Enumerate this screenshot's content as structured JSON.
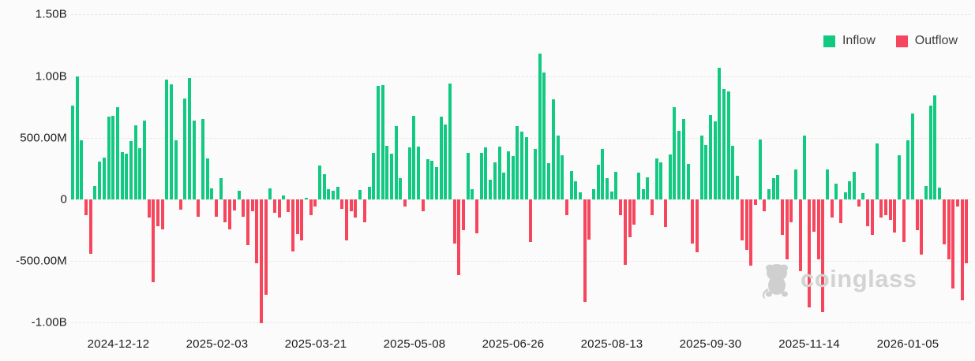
{
  "legend": {
    "inflow_label": "Inflow",
    "outflow_label": "Outflow"
  },
  "watermark": {
    "brand": "coinglass"
  },
  "colors": {
    "inflow_green": "#12C981",
    "outflow_red": "#F5465D",
    "background": "#FBFBFB",
    "gridline": "#E7E7E7",
    "axis_text": "#1C1C1C",
    "watermark_gray": "#D3D3D3"
  },
  "chart_data": {
    "type": "bar",
    "title": "",
    "xlabel": "",
    "ylabel": "",
    "unit": "USD",
    "value_unit": "millions (M); 1000 = 1.00B",
    "sign_convention": "positive = Inflow (green), negative = Outflow (red)",
    "legend_entries": [
      "Inflow",
      "Outflow"
    ],
    "legend_position": "top-right",
    "grid": "horizontal dashed",
    "ylim": [
      -1150,
      1500
    ],
    "y_ticks": [
      {
        "label": "1.50B",
        "value": 1500
      },
      {
        "label": "1.00B",
        "value": 1000
      },
      {
        "label": "500.00M",
        "value": 500
      },
      {
        "label": "0",
        "value": 0
      },
      {
        "label": "-500.00M",
        "value": -500
      },
      {
        "label": "-1.00B",
        "value": -1000
      }
    ],
    "x_ticks": [
      "2024-12-12",
      "2025-02-03",
      "2025-03-21",
      "2025-05-08",
      "2025-06-26",
      "2025-08-13",
      "2025-09-30",
      "2025-11-14",
      "2026-01-05"
    ],
    "values": [
      760,
      1000,
      480,
      -130,
      -440,
      110,
      310,
      340,
      670,
      680,
      745,
      385,
      370,
      470,
      600,
      415,
      640,
      -150,
      -670,
      -215,
      -245,
      970,
      935,
      480,
      -85,
      820,
      985,
      640,
      -140,
      650,
      335,
      90,
      -140,
      170,
      -185,
      -240,
      -90,
      70,
      -140,
      -370,
      -95,
      -520,
      -1005,
      -775,
      90,
      -110,
      -150,
      30,
      -100,
      -420,
      -280,
      -330,
      15,
      -125,
      -60,
      275,
      205,
      85,
      70,
      105,
      -75,
      -330,
      -95,
      -150,
      75,
      -185,
      105,
      375,
      920,
      930,
      435,
      370,
      595,
      170,
      -55,
      420,
      680,
      430,
      -95,
      325,
      315,
      260,
      670,
      610,
      940,
      -355,
      -615,
      -250,
      375,
      85,
      -275,
      380,
      425,
      160,
      300,
      430,
      215,
      390,
      350,
      595,
      550,
      505,
      -345,
      410,
      1185,
      1030,
      295,
      810,
      520,
      360,
      -130,
      230,
      150,
      55,
      -830,
      -325,
      85,
      280,
      410,
      170,
      65,
      225,
      -130,
      -530,
      -310,
      -205,
      215,
      85,
      180,
      -130,
      335,
      300,
      -225,
      365,
      745,
      555,
      650,
      290,
      -355,
      -430,
      515,
      440,
      685,
      630,
      1070,
      895,
      875,
      435,
      195,
      -335,
      -410,
      -540,
      -45,
      485,
      -95,
      80,
      170,
      200,
      -290,
      -485,
      -185,
      240,
      -580,
      520,
      -875,
      -260,
      -485,
      -915,
      240,
      -150,
      125,
      -195,
      55,
      150,
      225,
      -55,
      50,
      -215,
      -290,
      455,
      -150,
      -130,
      -165,
      -270,
      355,
      -345,
      480,
      700,
      -250,
      -450,
      110,
      760,
      845,
      95,
      -365,
      -485,
      -720,
      -55,
      -820,
      -515
    ]
  }
}
